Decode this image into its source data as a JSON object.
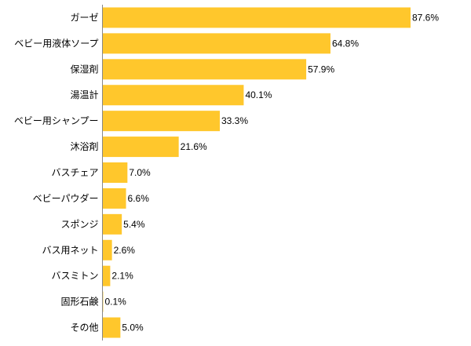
{
  "chart_data": {
    "type": "bar",
    "orientation": "horizontal",
    "title": "",
    "xlabel": "",
    "ylabel": "",
    "xlim": [
      0,
      100
    ],
    "grid": false,
    "legend": "none",
    "bar_color": "#FFC72C",
    "value_suffix": "%",
    "categories": [
      "ガーゼ",
      "ベビー用液体ソープ",
      "保湿剤",
      "湯温計",
      "ベビー用シャンプー",
      "沐浴剤",
      "バスチェア",
      "ベビーパウダー",
      "スポンジ",
      "バス用ネット",
      "バスミトン",
      "固形石鹸",
      "その他"
    ],
    "values": [
      87.6,
      64.8,
      57.9,
      40.1,
      33.3,
      21.6,
      7.0,
      6.6,
      5.4,
      2.6,
      2.1,
      0.1,
      5.0
    ],
    "value_labels": [
      "87.6%",
      "64.8%",
      "57.9%",
      "40.1%",
      "33.3%",
      "21.6%",
      "7.0%",
      "6.6%",
      "5.4%",
      "2.6%",
      "2.1%",
      "0.1%",
      "5.0%"
    ]
  }
}
